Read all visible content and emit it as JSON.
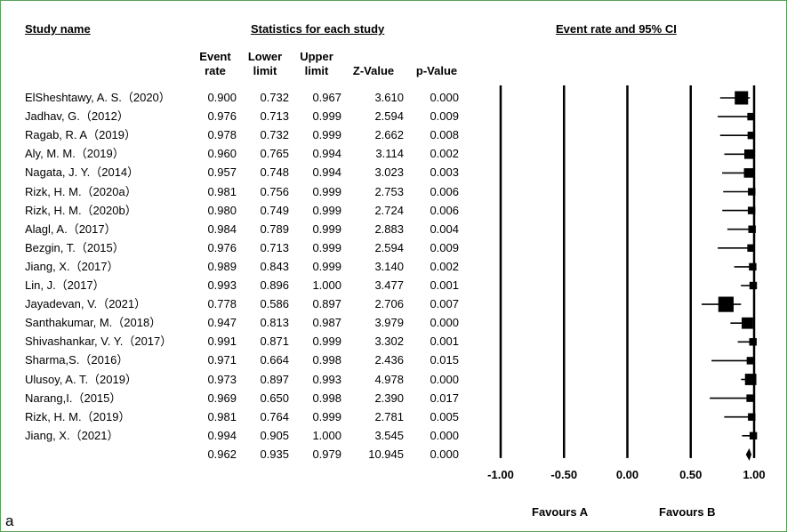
{
  "headers": {
    "study_name": "Study name",
    "statistics": "Statistics for each study",
    "plot": "Event rate and 95% CI"
  },
  "columns": {
    "event_rate": [
      "Event",
      "rate"
    ],
    "lower": [
      "Lower",
      "limit"
    ],
    "upper": [
      "Upper",
      "limit"
    ],
    "z": "Z-Value",
    "p": "p-Value"
  },
  "panel_label": "a",
  "favours_a": "Favours A",
  "favours_b": "Favours B",
  "chart_data": {
    "type": "forest",
    "xlim": [
      -1.0,
      1.0
    ],
    "ticks": [
      "-1.00",
      "-0.50",
      "0.00",
      "0.50",
      "1.00"
    ],
    "tick_values": [
      -1.0,
      -0.5,
      0.0,
      0.5,
      1.0
    ],
    "studies": [
      {
        "name": "ElSheshtawy, A. S.（2020）",
        "rate": "0.900",
        "lower": "0.732",
        "upper": "0.967",
        "z": "3.610",
        "p": "0.000",
        "weight": 5
      },
      {
        "name": "Jadhav, G.（2012）",
        "rate": "0.976",
        "lower": "0.713",
        "upper": "0.999",
        "z": "2.594",
        "p": "0.009",
        "weight": 2
      },
      {
        "name": "Ragab, R. A（2019）",
        "rate": "0.978",
        "lower": "0.732",
        "upper": "0.999",
        "z": "2.662",
        "p": "0.008",
        "weight": 2
      },
      {
        "name": "Aly, M. M.（2019）",
        "rate": "0.960",
        "lower": "0.765",
        "upper": "0.994",
        "z": "3.114",
        "p": "0.002",
        "weight": 3
      },
      {
        "name": "Nagata, J. Y.（2014）",
        "rate": "0.957",
        "lower": "0.748",
        "upper": "0.994",
        "z": "3.023",
        "p": "0.003",
        "weight": 3
      },
      {
        "name": "Rizk, H. M.（2020a）",
        "rate": "0.981",
        "lower": "0.756",
        "upper": "0.999",
        "z": "2.753",
        "p": "0.006",
        "weight": 2
      },
      {
        "name": "Rizk, H. M.（2020b）",
        "rate": "0.980",
        "lower": "0.749",
        "upper": "0.999",
        "z": "2.724",
        "p": "0.006",
        "weight": 2
      },
      {
        "name": "Alagl, A.（2017）",
        "rate": "0.984",
        "lower": "0.789",
        "upper": "0.999",
        "z": "2.883",
        "p": "0.004",
        "weight": 2
      },
      {
        "name": "Bezgin, T.（2015）",
        "rate": "0.976",
        "lower": "0.713",
        "upper": "0.999",
        "z": "2.594",
        "p": "0.009",
        "weight": 2
      },
      {
        "name": "Jiang, X.（2017）",
        "rate": "0.989",
        "lower": "0.843",
        "upper": "0.999",
        "z": "3.140",
        "p": "0.002",
        "weight": 2
      },
      {
        "name": "Lin, J.（2017）",
        "rate": "0.993",
        "lower": "0.896",
        "upper": "1.000",
        "z": "3.477",
        "p": "0.001",
        "weight": 2
      },
      {
        "name": "Jayadevan, V.（2021）",
        "rate": "0.778",
        "lower": "0.586",
        "upper": "0.897",
        "z": "2.706",
        "p": "0.007",
        "weight": 6
      },
      {
        "name": "Santhakumar, M.（2018）",
        "rate": "0.947",
        "lower": "0.813",
        "upper": "0.987",
        "z": "3.979",
        "p": "0.000",
        "weight": 4
      },
      {
        "name": "Shivashankar, V. Y.（2017）",
        "rate": "0.991",
        "lower": "0.871",
        "upper": "0.999",
        "z": "3.302",
        "p": "0.001",
        "weight": 2
      },
      {
        "name": "Sharma,S.（2016）",
        "rate": "0.971",
        "lower": "0.664",
        "upper": "0.998",
        "z": "2.436",
        "p": "0.015",
        "weight": 2
      },
      {
        "name": "Ulusoy, A. T.（2019）",
        "rate": "0.973",
        "lower": "0.897",
        "upper": "0.993",
        "z": "4.978",
        "p": "0.000",
        "weight": 4
      },
      {
        "name": "Narang,I.（2015）",
        "rate": "0.969",
        "lower": "0.650",
        "upper": "0.998",
        "z": "2.390",
        "p": "0.017",
        "weight": 2
      },
      {
        "name": "Rizk, H. M.（2019）",
        "rate": "0.981",
        "lower": "0.764",
        "upper": "0.999",
        "z": "2.781",
        "p": "0.005",
        "weight": 2
      },
      {
        "name": "Jiang, X.（2021）",
        "rate": "0.994",
        "lower": "0.905",
        "upper": "1.000",
        "z": "3.545",
        "p": "0.000",
        "weight": 2
      }
    ],
    "summary": {
      "rate": "0.962",
      "lower": "0.935",
      "upper": "0.979",
      "z": "10.945",
      "p": "0.000"
    }
  }
}
